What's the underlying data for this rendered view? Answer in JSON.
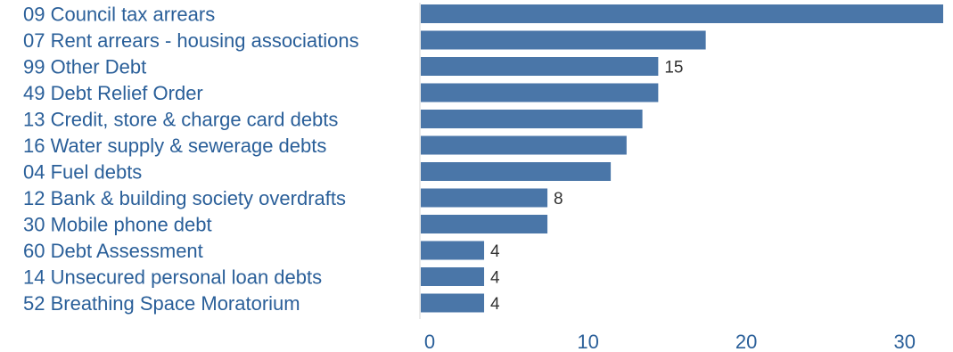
{
  "chart_data": {
    "type": "bar",
    "orientation": "horizontal",
    "categories": [
      "09 Council tax arrears",
      "07 Rent arrears -  housing associations",
      "99 Other Debt",
      "49 Debt Relief Order",
      "13 Credit, store & charge card debts",
      "16 Water supply & sewerage debts",
      "04 Fuel debts",
      "12 Bank & building society overdrafts",
      "30 Mobile phone debt",
      "60 Debt Assessment",
      "14 Unsecured personal loan debts",
      "52 Breathing Space Moratorium"
    ],
    "values": [
      33,
      18,
      15,
      15,
      14,
      13,
      12,
      8,
      8,
      4,
      4,
      4
    ],
    "data_labels": [
      "",
      "",
      "15",
      "",
      "",
      "",
      "",
      "8",
      "",
      "4",
      "4",
      "4"
    ],
    "xlim": [
      0,
      33
    ],
    "xticks": [
      "0",
      "10",
      "20",
      "30"
    ],
    "xtick_values": [
      0,
      10,
      20,
      30
    ],
    "grid": false,
    "bar_color": "#4a76a8",
    "label_color": "#2a5f99"
  }
}
